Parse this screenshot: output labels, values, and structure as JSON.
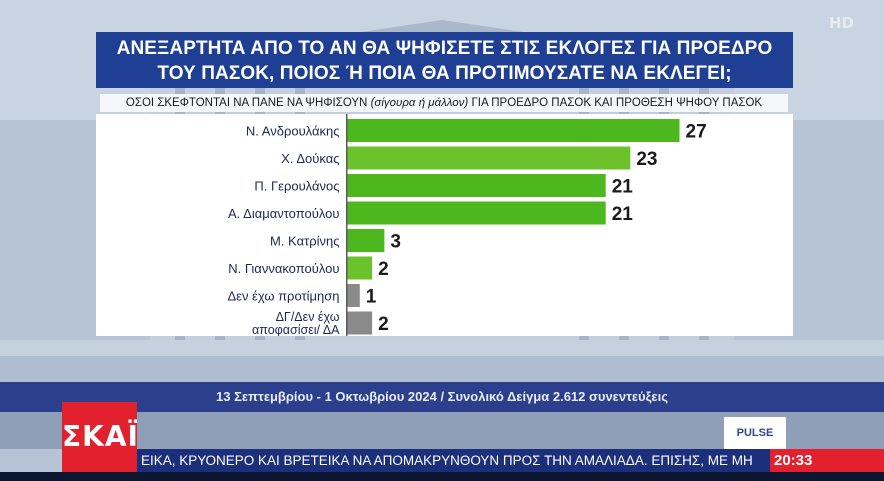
{
  "hd_badge": "HD",
  "title_line1": "ΑΝΕΞΑΡΤΗΤΑ ΑΠΟ ΤΟ ΑΝ ΘΑ ΨΗΦΙΣΕΤΕ ΣΤΙΣ ΕΚΛΟΓΕΣ ΓΙΑ ΠΡΟΕΔΡΟ",
  "title_line2": "ΤΟΥ ΠΑΣΟΚ, ΠΟΙΟΣ Ή ΠΟΙΑ ΘΑ ΠΡΟΤΙΜΟΥΣΑΤΕ ΝΑ ΕΚΛΕΓΕΙ;",
  "subtitle_a": "ΟΣΟΙ ΣΚΕΦΤΟΝΤΑΙ ΝΑ ΠΑΝΕ ΝΑ ΨΗΦΙΣΟΥΝ ",
  "subtitle_b": "(σίγουρα ή μάλλον)",
  "subtitle_c": " ΓΙΑ ΠΡΟΕΔΡΟ ΠΑΣΟΚ ΚΑΙ ΠΡΟΘΕΣΗ ΨΗΦΟΥ ΠΑΣΟΚ",
  "footer_text": "13 Σεπτεμβρίου - 1 Οκτωβρίου 2024 / Συνολικό Δείγμα 2.612 συνεντεύξεις",
  "channel_logo": "ΣΚΑΪ",
  "pollster_logo": "PULSE",
  "ticker_text": "ΕΙΚΑ, ΚΡΥΟΝΕΡΟ ΚΑΙ ΒΡΕΤΕΙΚΑ ΝΑ ΑΠΟΜΑΚΡΥΝΘΟΥΝ  ΠΡΟΣ ΤΗΝ ΑΜΑΛΙΑΔΑ. ΕΠΙΣΗΣ, ΜΕ ΜΗ",
  "clock": "20:33",
  "chart_data": {
    "type": "bar",
    "orientation": "horizontal",
    "categories": [
      "Ν. Ανδρουλάκης",
      "Χ. Δούκας",
      "Π. Γερουλάνος",
      "Α. Διαμαντοπούλου",
      "Μ. Κατρίνης",
      "Ν. Γιαννακοπούλου",
      "Δεν έχω προτίμηση",
      "ΔΓ/Δεν έχω αποφασίσει/ ΔΑ"
    ],
    "values": [
      27,
      23,
      21,
      21,
      3,
      2,
      1,
      2
    ],
    "colors": [
      "#4cb81e",
      "#6cc22a",
      "#4cb81e",
      "#4cb81e",
      "#4cb81e",
      "#6cc22a",
      "#8a8a8a",
      "#8a8a8a"
    ],
    "xlim": [
      0,
      27
    ],
    "grid": false,
    "legend": false,
    "value_labels": true
  }
}
